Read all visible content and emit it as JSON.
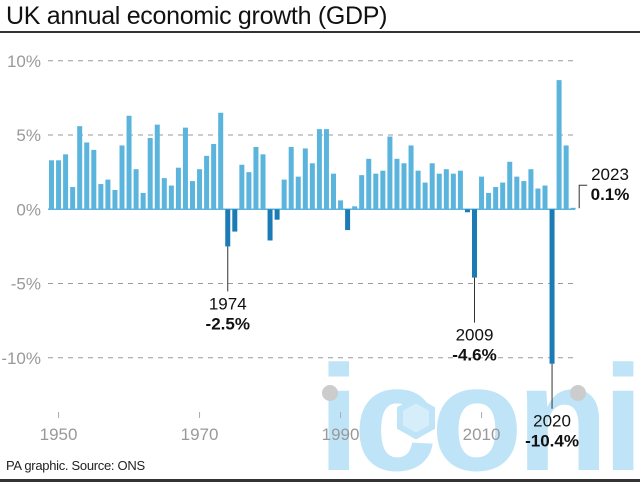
{
  "header": {
    "title": "UK annual economic growth (GDP)"
  },
  "footer": {
    "source": "PA graphic. Source: ONS"
  },
  "watermark": {
    "text": "iconic",
    "color": "#bfe4f7"
  },
  "colors": {
    "positive": "#5ab4dc",
    "negative": "#1b7cb5",
    "grid": "#9a9a9a",
    "axis_text": "#999999",
    "text": "#111111"
  },
  "chart_data": {
    "type": "bar",
    "title": "UK annual economic growth (GDP)",
    "xlabel": "",
    "ylabel": "",
    "ylim": [
      -13,
      10.5
    ],
    "yticks": [
      10,
      5,
      0,
      -5,
      -10
    ],
    "ytick_labels": [
      "10%",
      "5%",
      "0%",
      "-5%",
      "-10%"
    ],
    "xticks": [
      1950,
      1970,
      1990,
      2010
    ],
    "xtick_labels": [
      "1950",
      "1970",
      "1990",
      "2010"
    ],
    "grid": true,
    "categories": [
      1949,
      1950,
      1951,
      1952,
      1953,
      1954,
      1955,
      1956,
      1957,
      1958,
      1959,
      1960,
      1961,
      1962,
      1963,
      1964,
      1965,
      1966,
      1967,
      1968,
      1969,
      1970,
      1971,
      1972,
      1973,
      1974,
      1975,
      1976,
      1977,
      1978,
      1979,
      1980,
      1981,
      1982,
      1983,
      1984,
      1985,
      1986,
      1987,
      1988,
      1989,
      1990,
      1991,
      1992,
      1993,
      1994,
      1995,
      1996,
      1997,
      1998,
      1999,
      2000,
      2001,
      2002,
      2003,
      2004,
      2005,
      2006,
      2007,
      2008,
      2009,
      2010,
      2011,
      2012,
      2013,
      2014,
      2015,
      2016,
      2017,
      2018,
      2019,
      2020,
      2021,
      2022,
      2023
    ],
    "values": [
      3.3,
      3.3,
      3.7,
      1.5,
      5.6,
      4.5,
      4.0,
      1.7,
      2.0,
      1.3,
      4.3,
      6.3,
      2.7,
      1.1,
      4.8,
      5.7,
      2.1,
      1.6,
      2.8,
      5.5,
      1.9,
      2.7,
      3.6,
      4.4,
      6.5,
      -2.5,
      -1.5,
      3.0,
      2.5,
      4.2,
      3.7,
      -2.1,
      -0.7,
      2.0,
      4.2,
      2.2,
      4.1,
      3.1,
      5.4,
      5.4,
      2.4,
      0.6,
      -1.4,
      0.2,
      2.3,
      3.4,
      2.4,
      2.6,
      4.9,
      3.4,
      3.1,
      4.3,
      2.6,
      1.8,
      3.1,
      2.4,
      2.7,
      2.4,
      2.6,
      -0.2,
      -4.6,
      2.2,
      1.1,
      1.5,
      1.8,
      3.2,
      2.2,
      1.9,
      2.7,
      1.4,
      1.6,
      -10.4,
      8.7,
      4.3,
      0.1
    ],
    "annotations": [
      {
        "year": 1974,
        "label": "1974",
        "value_label": "-2.5%"
      },
      {
        "year": 2009,
        "label": "2009",
        "value_label": "-4.6%"
      },
      {
        "year": 2020,
        "label": "2020",
        "value_label": "-10.4%"
      },
      {
        "year": 2023,
        "label": "2023",
        "value_label": "0.1%"
      }
    ]
  }
}
